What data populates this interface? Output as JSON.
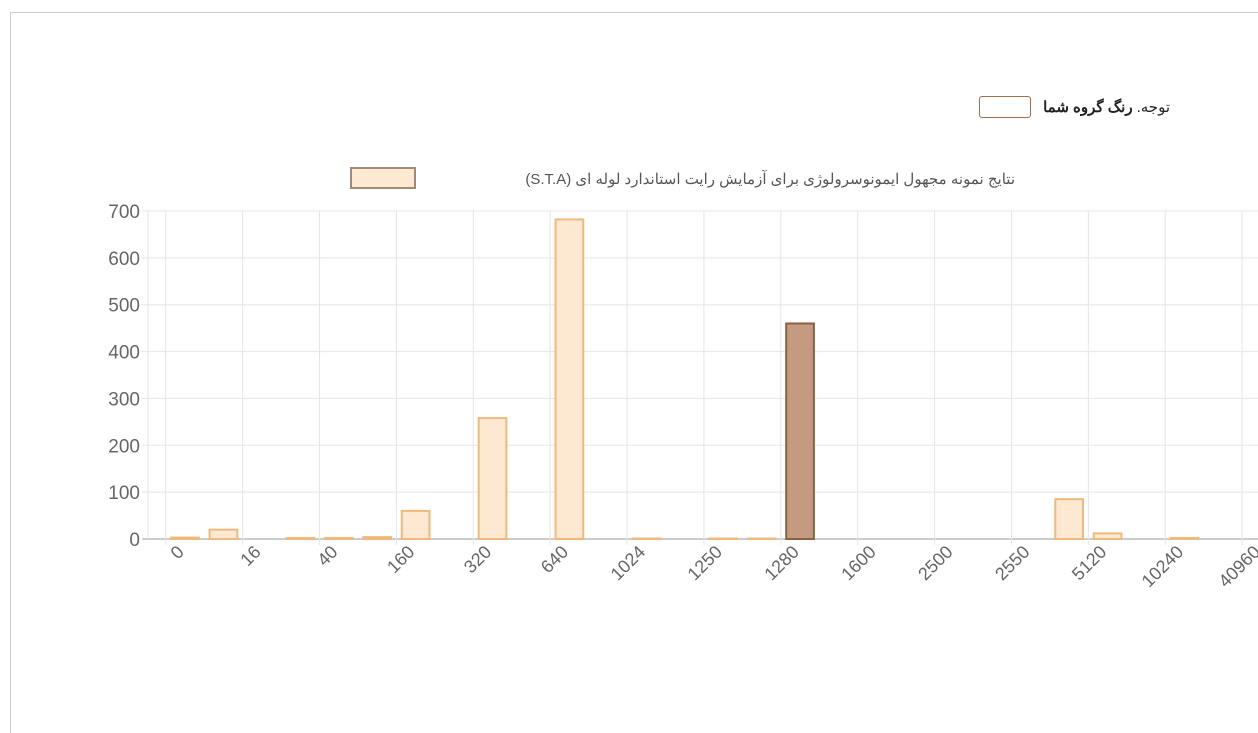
{
  "note": {
    "prefix": "توجه.",
    "label": "رنگ گروه شما",
    "swatch_color": "#ffffff",
    "swatch_border": "#a0704f"
  },
  "chart_data": {
    "type": "bar",
    "legend": "نتایج نمونه مجهول ایمونوسرولوژی برای آزمایش رایت استاندارد لوله ای (S.T.A)",
    "legend_color": "#fde9d2",
    "legend_border": "#a08a7a",
    "categories": [
      "0",
      null,
      "16",
      null,
      "40",
      null,
      "160",
      null,
      "320",
      null,
      "640",
      null,
      "1024",
      null,
      "1250",
      null,
      "1280",
      null,
      "1600",
      null,
      "2500",
      null,
      "2550",
      null,
      "5120",
      null,
      "10240",
      null,
      "40960"
    ],
    "values": [
      3,
      20,
      0,
      2,
      2,
      4,
      60,
      0,
      258,
      0,
      682,
      0,
      1,
      0,
      1,
      1,
      460,
      0,
      0,
      0,
      0,
      0,
      0,
      85,
      12,
      0,
      2,
      0,
      0
    ],
    "colors": [
      "#fde9d2",
      "#fde9d2",
      "#fde9d2",
      "#fde9d2",
      "#fde9d2",
      "#fde9d2",
      "#fde9d2",
      "#fde9d2",
      "#fde9d2",
      "#fde9d2",
      "#fde9d2",
      "#fde9d2",
      "#fde9d2",
      "#fde9d2",
      "#fde9d2",
      "#fde9d2",
      "#c49a80",
      "#fde9d2",
      "#fde9d2",
      "#fde9d2",
      "#fde9d2",
      "#fde9d2",
      "#fde9d2",
      "#fde9d2",
      "#fde9d2",
      "#fde9d2",
      "#fde9d2",
      "#fde9d2",
      "#fde9d2"
    ],
    "border_colors": [
      "#f0b87a",
      "#f0b87a",
      "#f0b87a",
      "#f0b87a",
      "#f0b87a",
      "#f0b87a",
      "#f0b87a",
      "#f0b87a",
      "#f0b87a",
      "#f0b87a",
      "#f0b87a",
      "#f0b87a",
      "#f0b87a",
      "#f0b87a",
      "#f0b87a",
      "#f0b87a",
      "#8d5e40",
      "#f0b87a",
      "#f0b87a",
      "#f0b87a",
      "#f0b87a",
      "#f0b87a",
      "#f0b87a",
      "#f0b87a",
      "#f0b87a",
      "#f0b87a",
      "#f0b87a",
      "#f0b87a",
      "#f0b87a"
    ],
    "ylim": [
      0,
      700
    ],
    "yticks": [
      0,
      100,
      200,
      300,
      400,
      500,
      600,
      700
    ],
    "grid": true
  }
}
